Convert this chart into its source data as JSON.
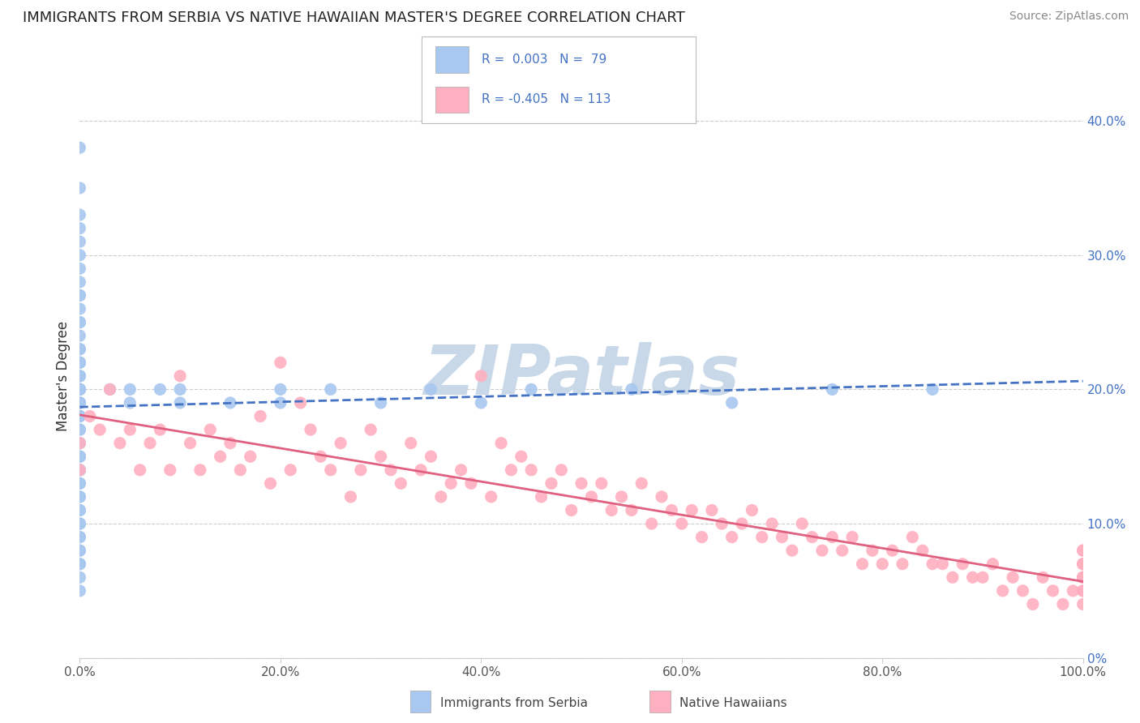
{
  "title": "IMMIGRANTS FROM SERBIA VS NATIVE HAWAIIAN MASTER'S DEGREE CORRELATION CHART",
  "source": "Source: ZipAtlas.com",
  "ylabel": "Master's Degree",
  "series": [
    {
      "name": "Immigrants from Serbia",
      "R": 0.003,
      "N": 79,
      "color": "#A8C8F0",
      "line_color": "#4472C4",
      "line_style": "--",
      "scatter_x": [
        0,
        0,
        0,
        0,
        0,
        0,
        0,
        0,
        0,
        0,
        0,
        0,
        0,
        0,
        0,
        0,
        0,
        0,
        0,
        0,
        0,
        0,
        0,
        0,
        0,
        0,
        0,
        0,
        0,
        0,
        0,
        0,
        0,
        0,
        0,
        0,
        0,
        0,
        0,
        0,
        0,
        0,
        0,
        0,
        0,
        0,
        0,
        0,
        0,
        0,
        0,
        0,
        0,
        0,
        0,
        0,
        0,
        0,
        0,
        0,
        0,
        3,
        5,
        5,
        8,
        10,
        10,
        15,
        20,
        20,
        25,
        30,
        35,
        40,
        45,
        55,
        65,
        75,
        85
      ],
      "scatter_y": [
        0.38,
        0.35,
        0.33,
        0.32,
        0.31,
        0.3,
        0.29,
        0.28,
        0.27,
        0.26,
        0.25,
        0.25,
        0.24,
        0.23,
        0.22,
        0.22,
        0.21,
        0.21,
        0.2,
        0.2,
        0.2,
        0.19,
        0.19,
        0.18,
        0.18,
        0.18,
        0.17,
        0.17,
        0.16,
        0.16,
        0.15,
        0.15,
        0.15,
        0.14,
        0.14,
        0.13,
        0.13,
        0.12,
        0.12,
        0.11,
        0.11,
        0.1,
        0.1,
        0.09,
        0.09,
        0.08,
        0.08,
        0.07,
        0.07,
        0.06,
        0.05,
        0.27,
        0.22,
        0.15,
        0.2,
        0.19,
        0.14,
        0.21,
        0.23,
        0.19,
        0.2,
        0.2,
        0.2,
        0.19,
        0.2,
        0.2,
        0.19,
        0.19,
        0.2,
        0.19,
        0.2,
        0.19,
        0.2,
        0.19,
        0.2,
        0.2,
        0.19,
        0.2,
        0.2
      ]
    },
    {
      "name": "Native Hawaiians",
      "R": -0.405,
      "N": 113,
      "color": "#FFB0C0",
      "line_color": "#E06080",
      "line_style": "-",
      "scatter_x": [
        0,
        0,
        1,
        2,
        3,
        4,
        5,
        6,
        7,
        8,
        9,
        10,
        11,
        12,
        13,
        14,
        15,
        16,
        17,
        18,
        19,
        20,
        21,
        22,
        23,
        24,
        25,
        26,
        27,
        28,
        29,
        30,
        31,
        32,
        33,
        34,
        35,
        36,
        37,
        38,
        39,
        40,
        41,
        42,
        43,
        44,
        45,
        46,
        47,
        48,
        49,
        50,
        51,
        52,
        53,
        54,
        55,
        56,
        57,
        58,
        59,
        60,
        61,
        62,
        63,
        64,
        65,
        66,
        67,
        68,
        69,
        70,
        71,
        72,
        73,
        74,
        75,
        76,
        77,
        78,
        79,
        80,
        81,
        82,
        83,
        84,
        85,
        86,
        87,
        88,
        89,
        90,
        91,
        92,
        93,
        94,
        95,
        96,
        97,
        98,
        99,
        100,
        100,
        100,
        100,
        100,
        100,
        100,
        100,
        100,
        100,
        100,
        100
      ],
      "scatter_y": [
        0.16,
        0.14,
        0.18,
        0.17,
        0.2,
        0.16,
        0.17,
        0.14,
        0.16,
        0.17,
        0.14,
        0.21,
        0.16,
        0.14,
        0.17,
        0.15,
        0.16,
        0.14,
        0.15,
        0.18,
        0.13,
        0.22,
        0.14,
        0.19,
        0.17,
        0.15,
        0.14,
        0.16,
        0.12,
        0.14,
        0.17,
        0.15,
        0.14,
        0.13,
        0.16,
        0.14,
        0.15,
        0.12,
        0.13,
        0.14,
        0.13,
        0.21,
        0.12,
        0.16,
        0.14,
        0.15,
        0.14,
        0.12,
        0.13,
        0.14,
        0.11,
        0.13,
        0.12,
        0.13,
        0.11,
        0.12,
        0.11,
        0.13,
        0.1,
        0.12,
        0.11,
        0.1,
        0.11,
        0.09,
        0.11,
        0.1,
        0.09,
        0.1,
        0.11,
        0.09,
        0.1,
        0.09,
        0.08,
        0.1,
        0.09,
        0.08,
        0.09,
        0.08,
        0.09,
        0.07,
        0.08,
        0.07,
        0.08,
        0.07,
        0.09,
        0.08,
        0.07,
        0.07,
        0.06,
        0.07,
        0.06,
        0.06,
        0.07,
        0.05,
        0.06,
        0.05,
        0.04,
        0.06,
        0.05,
        0.04,
        0.05,
        0.04,
        0.05,
        0.06,
        0.07,
        0.08,
        0.06,
        0.07,
        0.05,
        0.06,
        0.07,
        0.08,
        0.06
      ]
    }
  ],
  "xlim": [
    0,
    100
  ],
  "ylim": [
    0,
    0.42
  ],
  "yticks": [
    0.0,
    0.1,
    0.2,
    0.3,
    0.4
  ],
  "ytick_labels": [
    "0%",
    "10.0%",
    "20.0%",
    "30.0%",
    "40.0%"
  ],
  "xticks": [
    0,
    20,
    40,
    60,
    80,
    100
  ],
  "xtick_labels": [
    "0.0%",
    "20.0%",
    "40.0%",
    "60.0%",
    "80.0%",
    "100.0%"
  ],
  "watermark": "ZIPatlas",
  "watermark_color": "#C8D8E8",
  "background_color": "#FFFFFF",
  "grid_color": "#CCCCCC",
  "title_color": "#222222",
  "source_color": "#888888",
  "right_tick_color": "#4472C4"
}
